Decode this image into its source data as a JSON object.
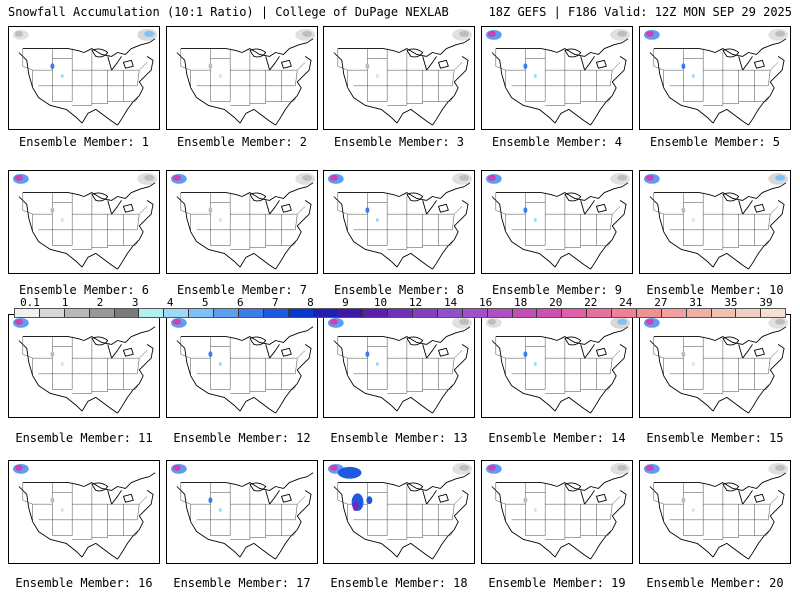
{
  "header": {
    "left_title": "Snowfall Accumulation (10:1 Ratio) | College of DuPage NEXLAB",
    "right_title": "18Z GEFS | F186 Valid: 12Z MON SEP 29 2025"
  },
  "colorbar": {
    "labels": [
      "0.1",
      "1",
      "2",
      "3",
      "4",
      "5",
      "6",
      "7",
      "8",
      "9",
      "10",
      "12",
      "14",
      "16",
      "18",
      "20",
      "22",
      "24",
      "27",
      "31",
      "35",
      "39"
    ],
    "colors": [
      "#f0f0f0",
      "#d8d8d8",
      "#b8b8b8",
      "#989898",
      "#7a7a7a",
      "#b0f0f0",
      "#9ed8f8",
      "#7ec0f8",
      "#5e9ef0",
      "#3e7ce8",
      "#1e5ae0",
      "#0838d0",
      "#2020b0",
      "#4018a8",
      "#5a20a8",
      "#7030b8",
      "#8040c0",
      "#9050c8",
      "#a050c8",
      "#b050c0",
      "#c050b8",
      "#d050b0",
      "#e060a8",
      "#e870a0",
      "#f08098",
      "#f09090",
      "#f0a0a0",
      "#f0b0a8",
      "#f0c0b0",
      "#f0d0c0",
      "#f8e0d0"
    ]
  },
  "members": [
    {
      "label": "Ensemble Member: 1",
      "snow": [
        {
          "region": "northwest",
          "intensity": 0
        },
        {
          "region": "northeast-canada",
          "intensity": 2
        },
        {
          "region": "rockies",
          "intensity": 1
        }
      ]
    },
    {
      "label": "Ensemble Member: 2",
      "snow": [
        {
          "region": "northeast-canada",
          "intensity": 0
        },
        {
          "region": "rockies",
          "intensity": 0
        }
      ]
    },
    {
      "label": "Ensemble Member: 3",
      "snow": [
        {
          "region": "northeast-canada",
          "intensity": 0
        },
        {
          "region": "rockies",
          "intensity": 0
        }
      ]
    },
    {
      "label": "Ensemble Member: 4",
      "snow": [
        {
          "region": "northwest",
          "intensity": 3
        },
        {
          "region": "northeast-canada",
          "intensity": 0
        },
        {
          "region": "rockies",
          "intensity": 1
        }
      ]
    },
    {
      "label": "Ensemble Member: 5",
      "snow": [
        {
          "region": "northwest",
          "intensity": 3
        },
        {
          "region": "northeast-canada",
          "intensity": 0
        },
        {
          "region": "rockies",
          "intensity": 1
        }
      ]
    },
    {
      "label": "Ensemble Member: 6",
      "snow": [
        {
          "region": "northwest",
          "intensity": 3
        },
        {
          "region": "northeast-canada",
          "intensity": 0
        },
        {
          "region": "rockies",
          "intensity": 0
        }
      ]
    },
    {
      "label": "Ensemble Member: 7",
      "snow": [
        {
          "region": "northwest",
          "intensity": 3
        },
        {
          "region": "northeast-canada",
          "intensity": 0
        },
        {
          "region": "rockies",
          "intensity": 0
        }
      ]
    },
    {
      "label": "Ensemble Member: 8",
      "snow": [
        {
          "region": "northwest",
          "intensity": 3
        },
        {
          "region": "northeast-canada",
          "intensity": 0
        },
        {
          "region": "rockies",
          "intensity": 1
        }
      ]
    },
    {
      "label": "Ensemble Member: 9",
      "snow": [
        {
          "region": "northwest",
          "intensity": 3
        },
        {
          "region": "northeast-canada",
          "intensity": 0
        },
        {
          "region": "rockies",
          "intensity": 1
        }
      ]
    },
    {
      "label": "Ensemble Member: 10",
      "snow": [
        {
          "region": "northwest",
          "intensity": 3
        },
        {
          "region": "northeast-canada",
          "intensity": 2
        },
        {
          "region": "rockies",
          "intensity": 0
        }
      ]
    },
    {
      "label": "Ensemble Member: 11",
      "snow": [
        {
          "region": "northwest",
          "intensity": 3
        },
        {
          "region": "rockies",
          "intensity": 0
        }
      ]
    },
    {
      "label": "Ensemble Member: 12",
      "snow": [
        {
          "region": "northwest",
          "intensity": 3
        },
        {
          "region": "rockies",
          "intensity": 1
        }
      ]
    },
    {
      "label": "Ensemble Member: 13",
      "snow": [
        {
          "region": "northwest",
          "intensity": 3
        },
        {
          "region": "northeast-canada",
          "intensity": 0
        },
        {
          "region": "rockies",
          "intensity": 1
        }
      ]
    },
    {
      "label": "Ensemble Member: 14",
      "snow": [
        {
          "region": "northwest",
          "intensity": 0
        },
        {
          "region": "northeast-canada",
          "intensity": 2
        },
        {
          "region": "rockies",
          "intensity": 1
        }
      ]
    },
    {
      "label": "Ensemble Member: 15",
      "snow": [
        {
          "region": "northwest",
          "intensity": 3
        },
        {
          "region": "northeast-canada",
          "intensity": 0
        },
        {
          "region": "rockies",
          "intensity": 0
        }
      ]
    },
    {
      "label": "Ensemble Member: 16",
      "snow": [
        {
          "region": "northwest",
          "intensity": 3
        },
        {
          "region": "rockies",
          "intensity": 0
        }
      ]
    },
    {
      "label": "Ensemble Member: 17",
      "snow": [
        {
          "region": "northwest",
          "intensity": 3
        },
        {
          "region": "rockies",
          "intensity": 1
        }
      ]
    },
    {
      "label": "Ensemble Member: 18",
      "snow": [
        {
          "region": "northwest",
          "intensity": 3
        },
        {
          "region": "northeast-canada",
          "intensity": 0
        },
        {
          "region": "rockies-heavy",
          "intensity": 4
        }
      ]
    },
    {
      "label": "Ensemble Member: 19",
      "snow": [
        {
          "region": "northwest",
          "intensity": 3
        },
        {
          "region": "northeast-canada",
          "intensity": 0
        },
        {
          "region": "rockies",
          "intensity": 0
        }
      ]
    },
    {
      "label": "Ensemble Member: 20",
      "snow": [
        {
          "region": "northwest",
          "intensity": 3
        },
        {
          "region": "northeast-canada",
          "intensity": 0
        },
        {
          "region": "rockies",
          "intensity": 0
        }
      ]
    }
  ]
}
